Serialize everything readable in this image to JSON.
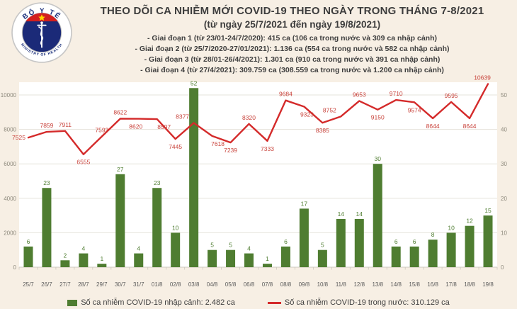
{
  "header": {
    "title": "THEO DÕI CA NHIỄM MỚI COVID-19 THEO NGÀY TRONG THÁNG 7-8/2021",
    "subtitle": "(từ ngày 25/7/2021 đến ngày 19/8/2021)",
    "bullets": [
      "- Giai đoạn 1 (từ 23/01-24/7/2020): 415 ca (106 ca trong nước và 309 ca nhập cảnh)",
      "- Giai đoạn 2 (từ 25/7/2020-27/01/2021): 1.136 ca (554 ca trong nước và 582 ca nhập cảnh)",
      "- Giai đoạn 3 (từ 28/01-26/4/2021): 1.301 ca (910 ca trong nước và 391 ca nhập cảnh)",
      "- Giai đoạn 4 (từ 27/4/2021): 309.759 ca (308.559 ca trong nước và 1.200 ca nhập cảnh)"
    ]
  },
  "logo": {
    "top_text": "BỘ Y TẾ",
    "bottom_text": "MINISTRY OF HEALTH"
  },
  "chart_data": {
    "type": "bar+line combo",
    "categories": [
      "25/7",
      "26/7",
      "27/7",
      "28/7",
      "29/7",
      "30/7",
      "31/7",
      "01/8",
      "02/8",
      "03/8",
      "04/8",
      "05/8",
      "06/8",
      "07/8",
      "08/8",
      "09/8",
      "10/8",
      "11/8",
      "12/8",
      "13/8",
      "14/8",
      "15/8",
      "16/8",
      "17/8",
      "18/8",
      "19/8"
    ],
    "series": [
      {
        "name": "Số ca nhiễm COVID-19 nhập cảnh",
        "type": "bar",
        "axis": "right",
        "color": "#4f7d31",
        "values": [
          6,
          23,
          2,
          4,
          1,
          27,
          4,
          23,
          10,
          52,
          5,
          5,
          4,
          1,
          6,
          17,
          5,
          14,
          14,
          30,
          6,
          6,
          8,
          10,
          12,
          15
        ]
      },
      {
        "name": "Số ca nhiễm COVID-19 trong nước",
        "type": "line",
        "axis": "left",
        "color": "#d42a2a",
        "label_color": "#c8423a",
        "values": [
          7525,
          7859,
          7911,
          6555,
          7593,
          8622,
          8620,
          8597,
          7445,
          8377,
          7618,
          7239,
          8320,
          7333,
          9684,
          9323,
          8385,
          8752,
          9653,
          9150,
          9710,
          9574,
          8644,
          9595,
          8644,
          10639
        ],
        "label_side": [
          "above",
          "above",
          "above",
          "below",
          "above",
          "above",
          "below",
          "below",
          "below",
          "above",
          "below",
          "below",
          "above",
          "below",
          "above",
          "below",
          "below",
          "above",
          "above",
          "below",
          "above",
          "below",
          "below",
          "above",
          "below",
          "above"
        ]
      }
    ],
    "left_axis": {
      "ticks": [
        0,
        2000,
        4000,
        6000,
        8000,
        10000
      ]
    },
    "right_axis": {
      "ticks": [
        0,
        10,
        20,
        30,
        40,
        50
      ]
    },
    "right_to_left_ratio": 200,
    "grid": true,
    "legend_position": "bottom"
  },
  "legend": {
    "items": [
      {
        "label": "Số ca nhiễm COVID-19 nhập cảnh: 2.482 ca",
        "color": "#4f7d31",
        "marker": "square"
      },
      {
        "label": "Số ca nhiễm COVID-19 trong nước: 310.129 ca",
        "color": "#d42a2a",
        "marker": "line"
      }
    ]
  }
}
